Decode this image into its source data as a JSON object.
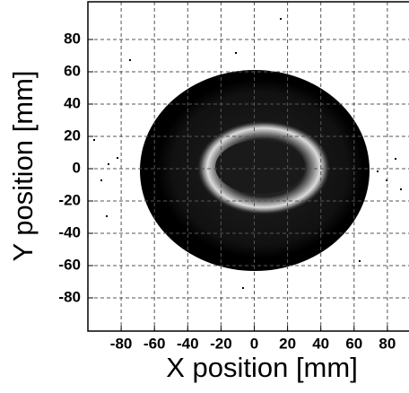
{
  "chart_data": {
    "type": "density",
    "x_label": "X position [mm]",
    "y_label": "Y position [mm]",
    "xlim": [
      -100,
      93
    ],
    "ylim": [
      -100,
      100
    ],
    "xticks": [
      -80,
      -60,
      -40,
      -20,
      0,
      20,
      40,
      60,
      80
    ],
    "yticks": [
      -80,
      -60,
      -40,
      -20,
      0,
      20,
      40,
      60,
      80
    ],
    "grid": true
  }
}
